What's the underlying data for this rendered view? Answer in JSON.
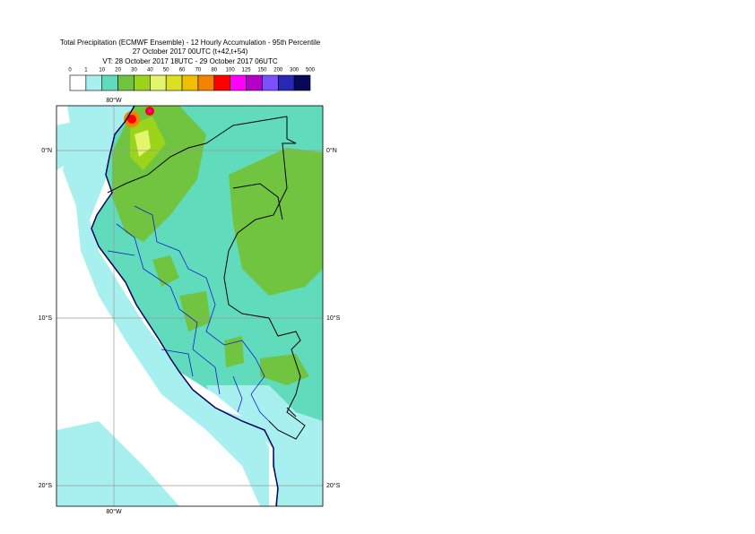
{
  "header": {
    "title": "Total Precipitation (ECMWF Ensemble) - 12 Hourly Accumulation - 95th Percentile",
    "base_time": "27 October 2017 00UTC (t+42,t+54)",
    "valid_time": "VT: 28 October 2017 18UTC - 29 October 2017 06UTC"
  },
  "legend": {
    "labels": [
      0,
      1,
      10,
      20,
      30,
      40,
      50,
      60,
      70,
      80,
      100,
      125,
      150,
      200,
      300,
      500
    ],
    "colors": [
      "#ffffff",
      "#a8f0f0",
      "#60dcbc",
      "#70c440",
      "#9cd41c",
      "#e4f46c",
      "#dce020",
      "#f0c000",
      "#f48400",
      "#ff0000",
      "#ff00ff",
      "#b400c8",
      "#7c50ff",
      "#2828b4",
      "#080858"
    ]
  },
  "map": {
    "lon_labels": [
      "80°W",
      "80°W"
    ],
    "lat_labels": [
      "0°N",
      "0°N",
      "10°S",
      "10°S",
      "20°S",
      "20°S"
    ]
  }
}
